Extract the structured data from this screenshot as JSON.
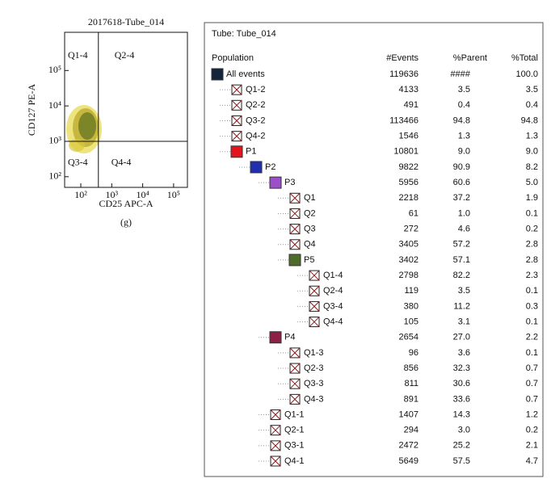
{
  "plot": {
    "title": "2017618-Tube_014",
    "x_label": "CD25 APC-A",
    "y_label": "CD127 PE-A",
    "caption": "(g)",
    "log_scale": true,
    "xlim": [
      30,
      280000
    ],
    "ylim": [
      50,
      1200000
    ],
    "xticks": [
      {
        "value": 100,
        "label": "10²"
      },
      {
        "value": 1000,
        "label": "10³"
      },
      {
        "value": 10000,
        "label": "10⁴"
      },
      {
        "value": 100000,
        "label": "10⁵"
      }
    ],
    "yticks": [
      {
        "value": 100,
        "label": "10²"
      },
      {
        "value": 1000,
        "label": "10³"
      },
      {
        "value": 10000,
        "label": "10⁴"
      },
      {
        "value": 100000,
        "label": "10⁵"
      }
    ],
    "gates": {
      "x": 370,
      "y": 1000
    },
    "quadrants": [
      "Q1-4",
      "Q2-4",
      "Q3-4",
      "Q4-4"
    ]
  },
  "table": {
    "title": "Tube:  Tube_014",
    "headers": [
      "Population",
      "#Events",
      "%Parent",
      "%Total"
    ],
    "rows": [
      {
        "name": "All events",
        "level": 0,
        "color": "#13253a",
        "events": "119636",
        "parent": "####",
        "total": "100.0"
      },
      {
        "name": "Q1-2",
        "level": 1,
        "events": "4133",
        "parent": "3.5",
        "total": "3.5"
      },
      {
        "name": "Q2-2",
        "level": 1,
        "events": "491",
        "parent": "0.4",
        "total": "0.4"
      },
      {
        "name": "Q3-2",
        "level": 1,
        "events": "113466",
        "parent": "94.8",
        "total": "94.8"
      },
      {
        "name": "Q4-2",
        "level": 1,
        "events": "1546",
        "parent": "1.3",
        "total": "1.3"
      },
      {
        "name": "P1",
        "level": 1,
        "color": "#e3151c",
        "events": "10801",
        "parent": "9.0",
        "total": "9.0"
      },
      {
        "name": "P2",
        "level": 2,
        "color": "#1f2fb0",
        "events": "9822",
        "parent": "90.9",
        "total": "8.2"
      },
      {
        "name": "P3",
        "level": 3,
        "color": "#9b4fc8",
        "events": "5956",
        "parent": "60.6",
        "total": "5.0"
      },
      {
        "name": "Q1",
        "level": 4,
        "events": "2218",
        "parent": "37.2",
        "total": "1.9"
      },
      {
        "name": "Q2",
        "level": 4,
        "events": "61",
        "parent": "1.0",
        "total": "0.1"
      },
      {
        "name": "Q3",
        "level": 4,
        "events": "272",
        "parent": "4.6",
        "total": "0.2"
      },
      {
        "name": "Q4",
        "level": 4,
        "events": "3405",
        "parent": "57.2",
        "total": "2.8"
      },
      {
        "name": "P5",
        "level": 4,
        "color": "#4f6b2a",
        "events": "3402",
        "parent": "57.1",
        "total": "2.8"
      },
      {
        "name": "Q1-4",
        "level": 5,
        "events": "2798",
        "parent": "82.2",
        "total": "2.3"
      },
      {
        "name": "Q2-4",
        "level": 5,
        "events": "119",
        "parent": "3.5",
        "total": "0.1"
      },
      {
        "name": "Q3-4",
        "level": 5,
        "events": "380",
        "parent": "11.2",
        "total": "0.3"
      },
      {
        "name": "Q4-4",
        "level": 5,
        "events": "105",
        "parent": "3.1",
        "total": "0.1"
      },
      {
        "name": "P4",
        "level": 3,
        "color": "#8e1f45",
        "events": "2654",
        "parent": "27.0",
        "total": "2.2"
      },
      {
        "name": "Q1-3",
        "level": 4,
        "events": "96",
        "parent": "3.6",
        "total": "0.1"
      },
      {
        "name": "Q2-3",
        "level": 4,
        "events": "856",
        "parent": "32.3",
        "total": "0.7"
      },
      {
        "name": "Q3-3",
        "level": 4,
        "events": "811",
        "parent": "30.6",
        "total": "0.7"
      },
      {
        "name": "Q4-3",
        "level": 4,
        "events": "891",
        "parent": "33.6",
        "total": "0.7"
      },
      {
        "name": "Q1-1",
        "level": 3,
        "events": "1407",
        "parent": "14.3",
        "total": "1.2"
      },
      {
        "name": "Q2-1",
        "level": 3,
        "events": "294",
        "parent": "3.0",
        "total": "0.2"
      },
      {
        "name": "Q3-1",
        "level": 3,
        "events": "2472",
        "parent": "25.2",
        "total": "2.1"
      },
      {
        "name": "Q4-1",
        "level": 3,
        "events": "5649",
        "parent": "57.5",
        "total": "4.7"
      }
    ]
  }
}
